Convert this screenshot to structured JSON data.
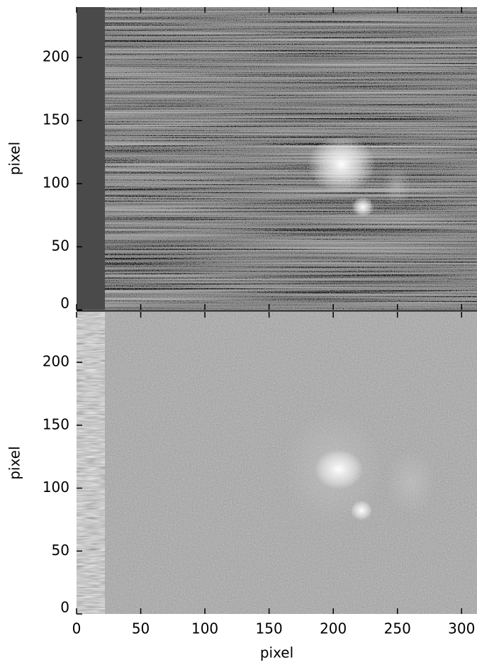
{
  "chart_data": [
    {
      "type": "image",
      "ylabel": "pixel",
      "xlim": [
        0,
        312
      ],
      "ylim": [
        0,
        240
      ],
      "xticks": [
        0,
        50,
        100,
        150,
        200,
        250,
        300
      ],
      "yticks": [
        0,
        50,
        100,
        150,
        200
      ]
    },
    {
      "type": "image",
      "xlabel": "pixel",
      "ylabel": "pixel",
      "xlim": [
        0,
        312
      ],
      "ylim": [
        0,
        240
      ],
      "xticks": [
        0,
        50,
        100,
        150,
        200,
        250,
        300
      ],
      "yticks": [
        0,
        50,
        100,
        150,
        200
      ]
    }
  ]
}
